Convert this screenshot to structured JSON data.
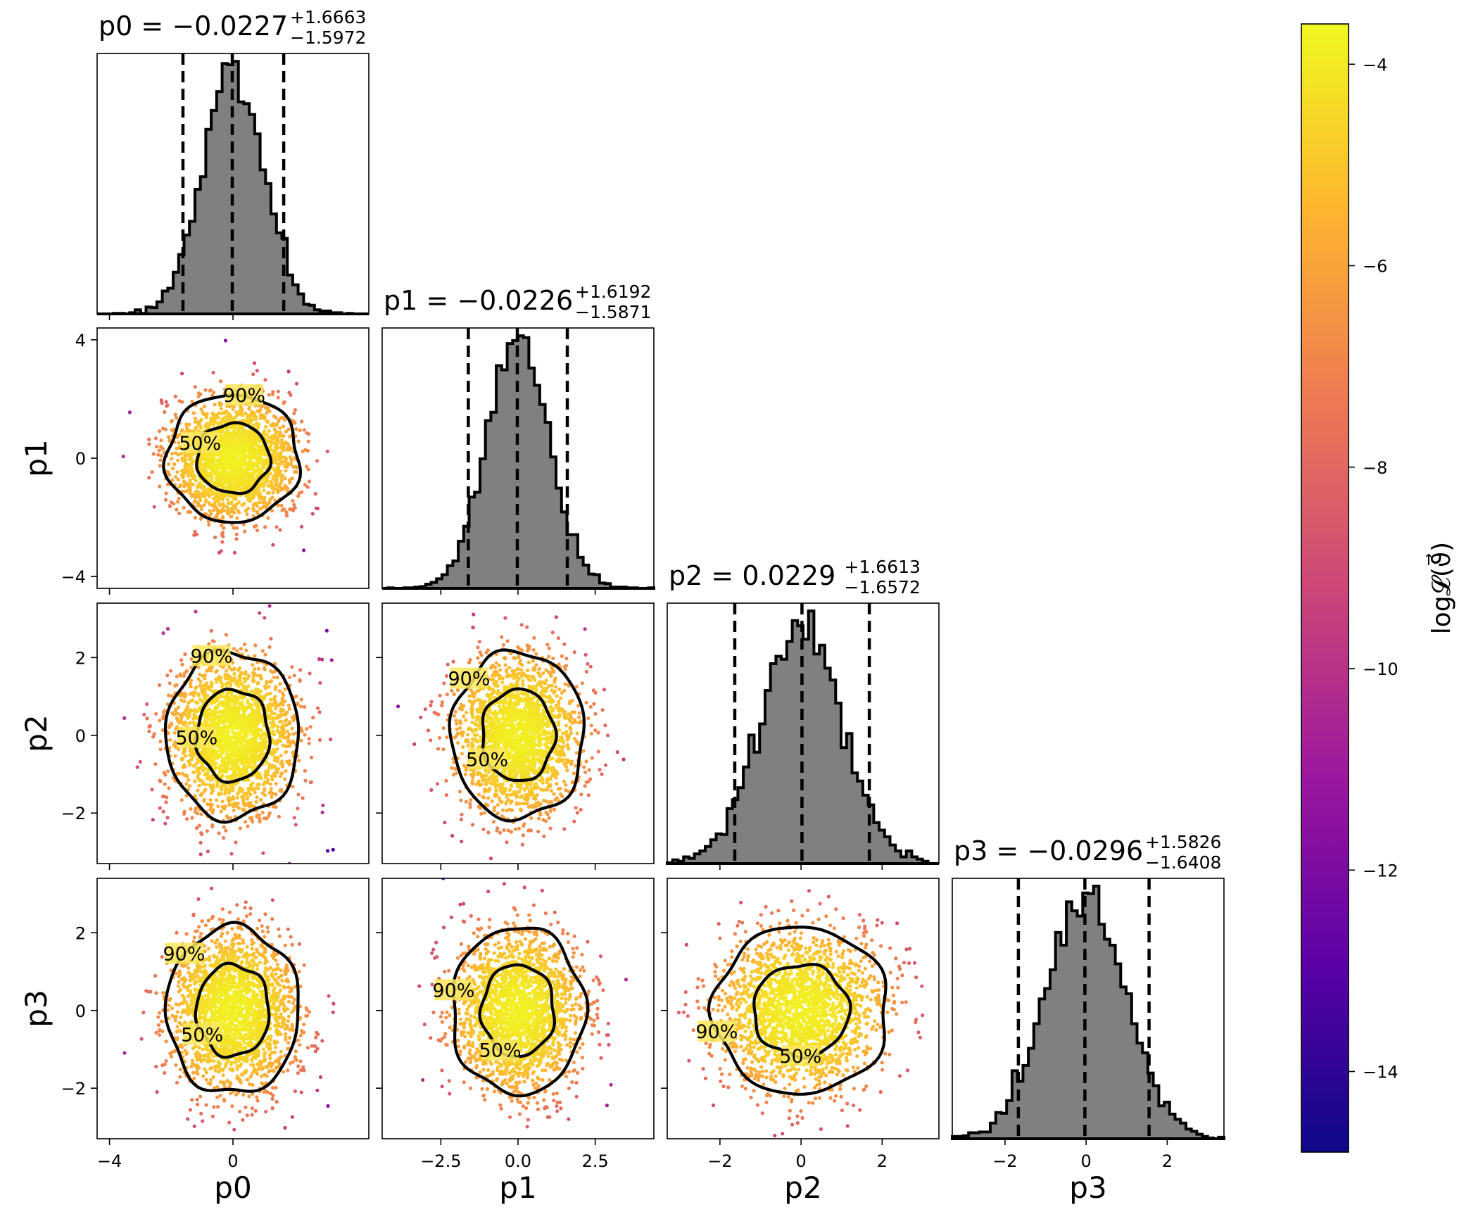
{
  "chart_data": {
    "type": "corner",
    "parameters": [
      "p0",
      "p1",
      "p2",
      "p3"
    ],
    "diagonal_titles": [
      {
        "param": "p0",
        "median": "−0.0227",
        "plus": "+1.6663",
        "minus": "−1.5972"
      },
      {
        "param": "p1",
        "median": "−0.0226",
        "plus": "+1.6192",
        "minus": "−1.5871"
      },
      {
        "param": "p2",
        "median": "0.0229",
        "plus": "+1.6613",
        "minus": "−1.6572"
      },
      {
        "param": "p3",
        "median": "−0.0296",
        "plus": "+1.5826",
        "minus": "−1.6408"
      }
    ],
    "title_equals": "=",
    "quantile_values": [
      [
        -1.6199,
        -0.0227,
        1.6436
      ],
      [
        -1.6097,
        -0.0226,
        1.5966
      ],
      [
        -1.6343,
        0.0229,
        1.6842
      ],
      [
        -1.6704,
        -0.0296,
        1.553
      ]
    ],
    "axis_ranges": {
      "p0": [
        -4.4,
        4.4
      ],
      "p1": [
        -4.4,
        4.4
      ],
      "p2": [
        -3.3,
        3.4
      ],
      "p3": [
        -3.3,
        3.4
      ]
    },
    "x_ticks": {
      "p0": {
        "values": [
          -4,
          0
        ],
        "labels": [
          "−4",
          "0"
        ]
      },
      "p1": {
        "values": [
          -2.5,
          0,
          2.5
        ],
        "labels": [
          "−2.5",
          "0.0",
          "2.5"
        ]
      },
      "p2": {
        "values": [
          -2,
          0,
          2
        ],
        "labels": [
          "−2",
          "0",
          "2"
        ]
      },
      "p3": {
        "values": [
          -2,
          0,
          2
        ],
        "labels": [
          "−2",
          "0",
          "2"
        ]
      }
    },
    "y_ticks": {
      "p1": {
        "values": [
          -4,
          0,
          4
        ],
        "labels": [
          "−4",
          "0",
          "4"
        ]
      },
      "p2": {
        "values": [
          -2,
          0,
          2
        ],
        "labels": [
          "−2",
          "0",
          "2"
        ]
      },
      "p3": {
        "values": [
          -2,
          0,
          2
        ],
        "labels": [
          "−2",
          "0",
          "2"
        ]
      }
    },
    "x_labels": [
      "p0",
      "p1",
      "p2",
      "p3"
    ],
    "y_labels": [
      "p1",
      "p2",
      "p3"
    ],
    "contour_levels": [
      {
        "label": "50%",
        "radius": 1.18
      },
      {
        "label": "90%",
        "radius": 2.15
      }
    ],
    "histogram": {
      "bins": 50,
      "color": "#808080",
      "edgecolor": "#000000",
      "distribution": "normal(0, 1)"
    },
    "scatter": {
      "points_per_panel": 2200,
      "colormap": "plasma"
    },
    "colorbar": {
      "label": "log𝓛(ϑ⃗)",
      "range": [
        -14.8,
        -3.6
      ],
      "ticks": [
        -4,
        -6,
        -8,
        -10,
        -12,
        -14
      ],
      "tick_labels": [
        "−4",
        "−6",
        "−8",
        "−10",
        "−12",
        "−14"
      ]
    },
    "colormap_stops": [
      "#0d0887",
      "#5c01a6",
      "#9c179e",
      "#cc4778",
      "#ed7953",
      "#fdb42f",
      "#f0f921"
    ]
  }
}
